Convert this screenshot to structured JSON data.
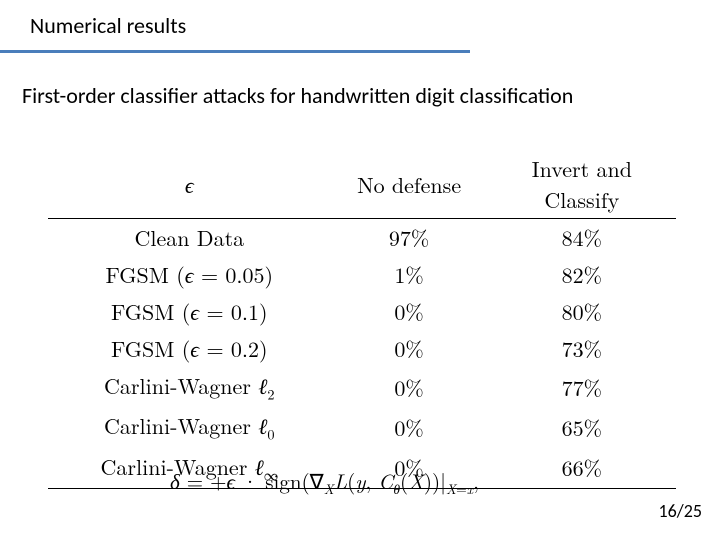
{
  "section_title": "Numerical results",
  "subtitle": "First-order classifier attacks for handwritten digit classification",
  "hr_color": "#4a7ebb",
  "table": {
    "headers": {
      "eps": "ϵ",
      "nd": "No defense",
      "ic": "Invert and Classify"
    },
    "rows": [
      {
        "label": "Clean Data",
        "nd": "97%",
        "ic": "84%",
        "plain": true
      },
      {
        "label": "FGSM (ϵ = 0.05)",
        "nd": "1%",
        "ic": "82%"
      },
      {
        "label": "FGSM (ϵ = 0.1)",
        "nd": "0%",
        "ic": "80%"
      },
      {
        "label": "FGSM (ϵ = 0.2)",
        "nd": "0%",
        "ic": "73%"
      },
      {
        "label": "Carlini-Wagner ℓ2",
        "nd": "0%",
        "ic": "77%",
        "lnorm": "2"
      },
      {
        "label": "Carlini-Wagner ℓ0",
        "nd": "0%",
        "ic": "65%",
        "lnorm": "0"
      },
      {
        "label": "Carlini-Wagner ℓ∞",
        "nd": "0%",
        "ic": "66%",
        "lnorm": "∞"
      }
    ]
  },
  "formula_text": "δ = +ϵ · sign(∇X L(y, Cθ(X))|X=x,",
  "page": "16/25"
}
